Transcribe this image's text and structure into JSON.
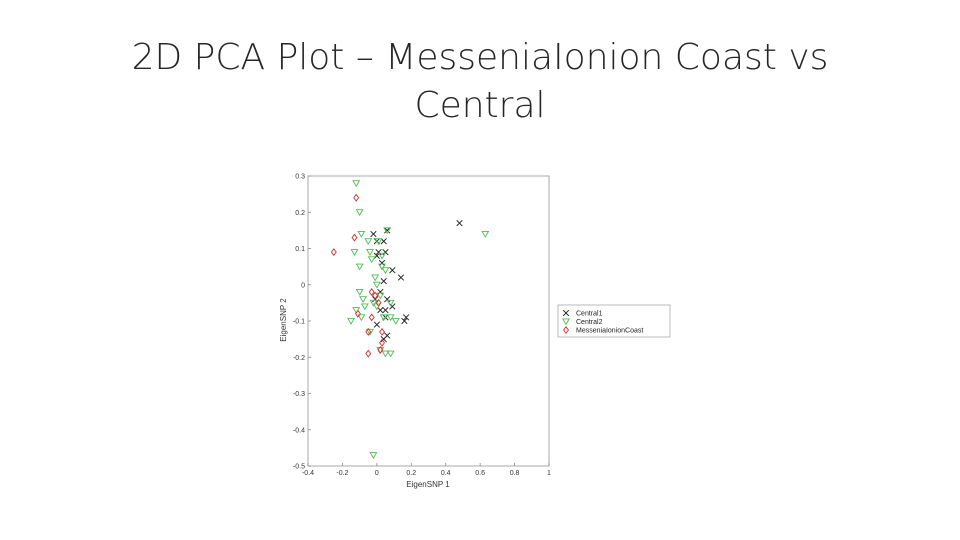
{
  "slide": {
    "title": "2D PCA Plot – MesseniaIonion Coast vs Central"
  },
  "chart_data": {
    "type": "scatter",
    "title": "",
    "xlabel": "EigenSNP 1",
    "ylabel": "EigenSNP 2",
    "xlim": [
      -0.4,
      1
    ],
    "ylim": [
      -0.5,
      0.3
    ],
    "xticks": [
      -0.4,
      -0.2,
      0,
      0.2,
      0.4,
      0.6,
      0.8,
      1
    ],
    "xtick_labels": [
      "-0.4",
      "-0.2",
      "0",
      "0.2",
      "0.4",
      "0.6",
      "0.8",
      "1"
    ],
    "yticks": [
      -0.5,
      -0.4,
      -0.3,
      -0.2,
      -0.1,
      0,
      0.1,
      0.2,
      0.3
    ],
    "ytick_labels": [
      "-0.5",
      "-0.4",
      "-0.3",
      "-0.2",
      "-0.1",
      "0",
      "0.1",
      "0.2",
      "0.3"
    ],
    "grid": false,
    "legend_position": "right-outside",
    "series": [
      {
        "name": "Central1",
        "marker": "x",
        "color": "#222222",
        "points": [
          [
            0.48,
            0.17
          ],
          [
            0.06,
            0.15
          ],
          [
            -0.02,
            0.14
          ],
          [
            0.0,
            0.12
          ],
          [
            0.04,
            0.12
          ],
          [
            0.01,
            0.09
          ],
          [
            0.03,
            0.06
          ],
          [
            0.14,
            0.02
          ],
          [
            0.09,
            0.04
          ],
          [
            0.04,
            0.01
          ],
          [
            0.06,
            -0.04
          ],
          [
            0.09,
            -0.06
          ],
          [
            0.02,
            -0.07
          ],
          [
            0.05,
            -0.07
          ],
          [
            0.17,
            -0.09
          ],
          [
            0.16,
            -0.1
          ],
          [
            0.05,
            -0.09
          ],
          [
            0.0,
            -0.11
          ],
          [
            0.04,
            -0.15
          ],
          [
            0.06,
            -0.14
          ],
          [
            -0.01,
            -0.04
          ],
          [
            0.02,
            -0.02
          ],
          [
            0.0,
            0.08
          ],
          [
            0.05,
            0.09
          ]
        ]
      },
      {
        "name": "Central2",
        "marker": "triangle-down",
        "color": "#55bb55",
        "points": [
          [
            -0.12,
            0.28
          ],
          [
            -0.1,
            0.2
          ],
          [
            0.06,
            0.15
          ],
          [
            0.63,
            0.14
          ],
          [
            -0.09,
            0.14
          ],
          [
            -0.05,
            0.12
          ],
          [
            -0.04,
            0.09
          ],
          [
            -0.13,
            0.09
          ],
          [
            0.01,
            0.12
          ],
          [
            0.03,
            0.08
          ],
          [
            -0.1,
            0.05
          ],
          [
            0.03,
            0.05
          ],
          [
            0.05,
            0.04
          ],
          [
            -0.01,
            0.02
          ],
          [
            0.0,
            0.0
          ],
          [
            -0.1,
            -0.02
          ],
          [
            -0.08,
            -0.04
          ],
          [
            0.02,
            -0.03
          ],
          [
            -0.02,
            -0.05
          ],
          [
            0.08,
            -0.05
          ],
          [
            -0.12,
            -0.07
          ],
          [
            -0.07,
            -0.06
          ],
          [
            0.0,
            -0.06
          ],
          [
            0.08,
            -0.09
          ],
          [
            -0.15,
            -0.1
          ],
          [
            0.04,
            -0.09
          ],
          [
            -0.09,
            -0.09
          ],
          [
            0.11,
            -0.1
          ],
          [
            -0.04,
            -0.13
          ],
          [
            0.05,
            -0.19
          ],
          [
            0.08,
            -0.19
          ],
          [
            0.02,
            -0.18
          ],
          [
            -0.02,
            -0.47
          ],
          [
            -0.03,
            0.07
          ]
        ]
      },
      {
        "name": "MesseniaIonionCoast",
        "marker": "diamond",
        "color": "#cc3333",
        "points": [
          [
            -0.12,
            0.24
          ],
          [
            -0.13,
            0.13
          ],
          [
            -0.25,
            0.09
          ],
          [
            -0.03,
            -0.02
          ],
          [
            -0.01,
            -0.03
          ],
          [
            0.01,
            -0.05
          ],
          [
            -0.11,
            -0.08
          ],
          [
            -0.03,
            -0.09
          ],
          [
            -0.05,
            -0.13
          ],
          [
            0.03,
            -0.13
          ],
          [
            0.03,
            -0.16
          ],
          [
            0.02,
            -0.18
          ],
          [
            -0.05,
            -0.19
          ]
        ]
      }
    ]
  }
}
